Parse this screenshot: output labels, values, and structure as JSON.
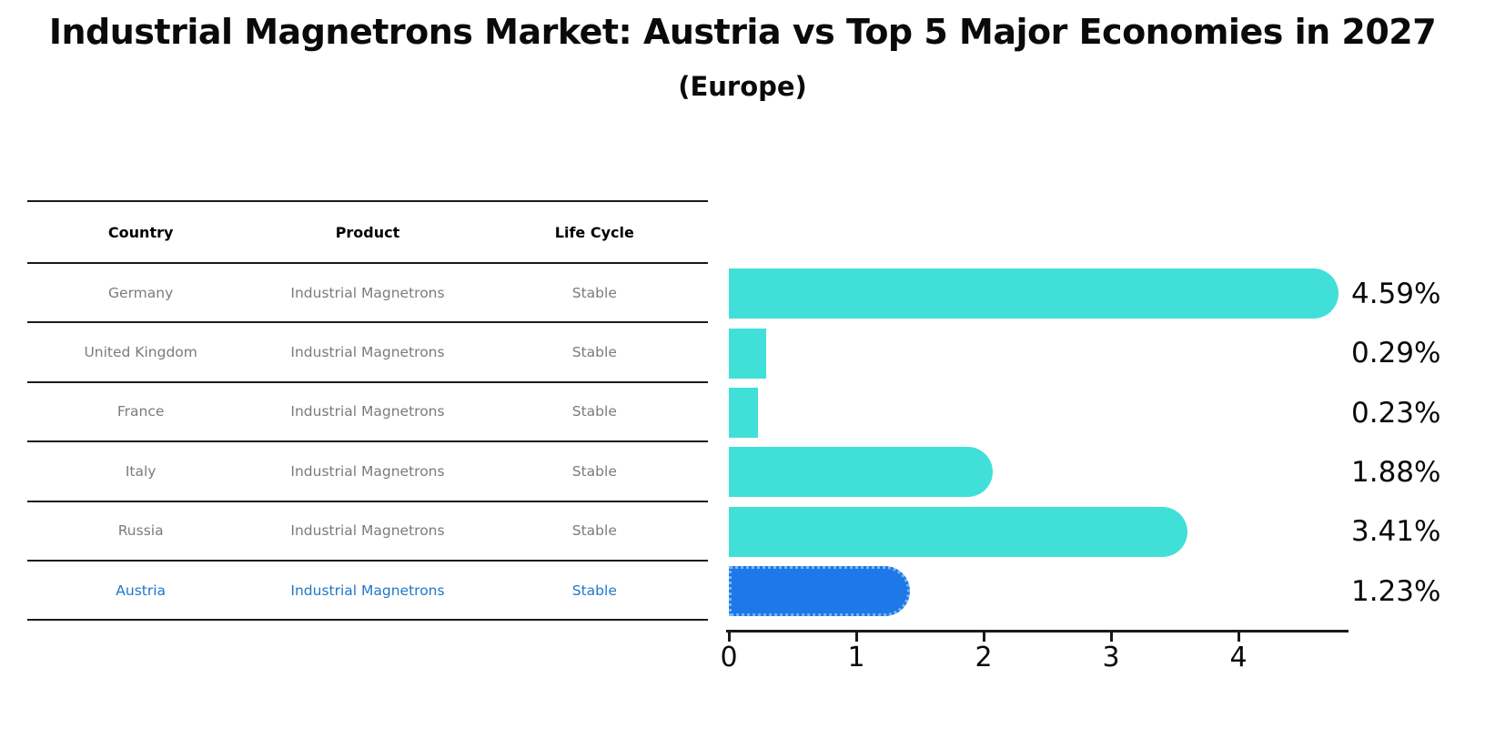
{
  "title": "Industrial Magnetrons Market: Austria vs Top 5 Major Economies in 2027",
  "subtitle": "(Europe)",
  "table": {
    "headers": [
      "Country",
      "Product",
      "Life Cycle"
    ],
    "rows": [
      {
        "country": "Germany",
        "product": "Industrial Magnetrons",
        "life_cycle": "Stable",
        "highlighted": false
      },
      {
        "country": "United Kingdom",
        "product": "Industrial Magnetrons",
        "life_cycle": "Stable",
        "highlighted": false
      },
      {
        "country": "France",
        "product": "Industrial Magnetrons",
        "life_cycle": "Stable",
        "highlighted": false
      },
      {
        "country": "Italy",
        "product": "Industrial Magnetrons",
        "life_cycle": "Stable",
        "highlighted": false
      },
      {
        "country": "Russia",
        "product": "Industrial Magnetrons",
        "life_cycle": "Stable",
        "highlighted": false
      },
      {
        "country": "Austria",
        "product": "Industrial Magnetrons",
        "life_cycle": "Stable",
        "highlighted": true
      }
    ]
  },
  "chart_data": {
    "type": "bar",
    "orientation": "horizontal",
    "title": "Industrial Magnetrons Market: Austria vs Top 5 Major Economies in 2027",
    "subtitle": "(Europe)",
    "categories": [
      "Germany",
      "United Kingdom",
      "France",
      "Italy",
      "Russia",
      "Austria"
    ],
    "values": [
      4.59,
      0.29,
      0.23,
      1.88,
      3.41,
      1.23
    ],
    "labels": [
      "4.59%",
      "0.29%",
      "0.23%",
      "1.88%",
      "3.41%",
      "1.23%"
    ],
    "x_ticks": [
      "0",
      "1",
      "2",
      "3",
      "4"
    ],
    "xlim": [
      0,
      4.85
    ],
    "grid": false,
    "legend": false,
    "highlight_index": 5,
    "bar_color": "#40e0d8",
    "highlight_bar_color": "#1e78e8",
    "highlight_text_color": "#1f77c9",
    "axis_color": "#1a1a1a"
  }
}
